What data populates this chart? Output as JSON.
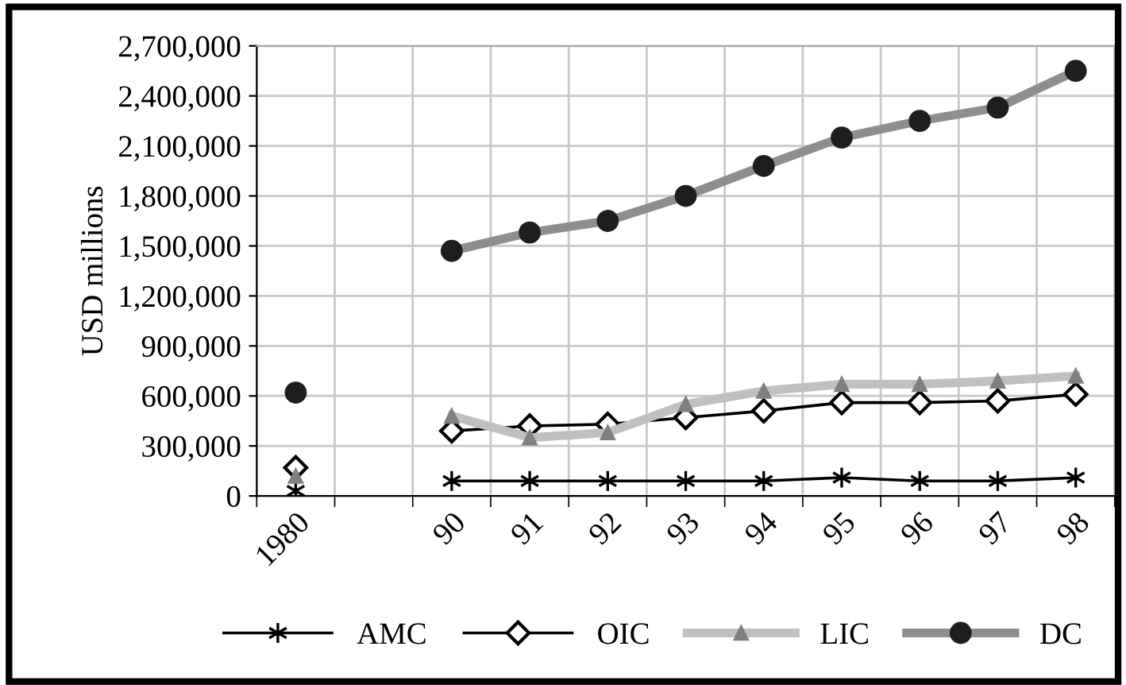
{
  "chart_data": {
    "type": "line",
    "ylabel": "USD millions",
    "categories": [
      "1980",
      null,
      "90",
      "91",
      "92",
      "93",
      "94",
      "95",
      "96",
      "97",
      "98"
    ],
    "series": [
      {
        "name": "AMC",
        "color": "#000000",
        "marker": "cross",
        "values": [
          30000,
          null,
          90000,
          90000,
          90000,
          90000,
          90000,
          110000,
          90000,
          90000,
          110000
        ]
      },
      {
        "name": "OIC",
        "color": "#000000",
        "marker": "diamond",
        "values": [
          170000,
          null,
          390000,
          420000,
          430000,
          470000,
          510000,
          560000,
          560000,
          570000,
          610000
        ]
      },
      {
        "name": "LIC",
        "color": "#808080",
        "marker": "triangle",
        "values": [
          120000,
          null,
          480000,
          350000,
          380000,
          550000,
          630000,
          670000,
          670000,
          690000,
          720000
        ]
      },
      {
        "name": "DC",
        "color": "#1e1e1e",
        "marker": "circle",
        "values": [
          620000,
          null,
          1470000,
          1580000,
          1650000,
          1800000,
          1980000,
          2150000,
          2250000,
          2330000,
          2550000
        ]
      }
    ],
    "ylim": [
      0,
      2700000
    ],
    "yticks": [
      {
        "value": 0,
        "label": "0"
      },
      {
        "value": 300000,
        "label": "300,000"
      },
      {
        "value": 600000,
        "label": "600,000"
      },
      {
        "value": 900000,
        "label": "900,000"
      },
      {
        "value": 1200000,
        "label": "1,200,000"
      },
      {
        "value": 1500000,
        "label": "1,500,000"
      },
      {
        "value": 1800000,
        "label": "1,800,000"
      },
      {
        "value": 2100000,
        "label": "2,100,000"
      },
      {
        "value": 2400000,
        "label": "2,400,000"
      },
      {
        "value": 2700000,
        "label": "2,700,000"
      }
    ],
    "grid": true,
    "legend": "bottom"
  }
}
